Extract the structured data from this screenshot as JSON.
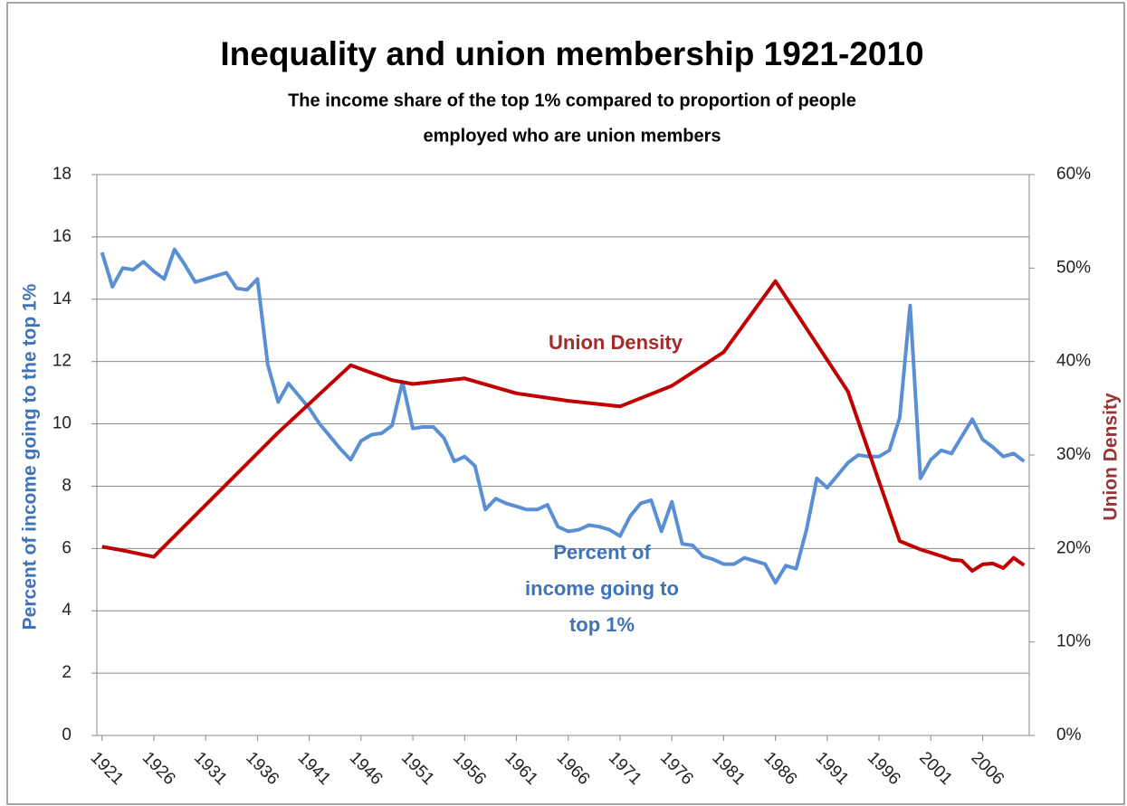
{
  "chart_data": {
    "type": "line",
    "title": "Inequality and union membership 1921-2010",
    "subtitle": [
      "The income share of the top 1% compared to proportion of people",
      "employed who are union members"
    ],
    "y_label": "Percent of income going to the top 1%",
    "y2_label": "Union Density",
    "annotations": [
      {
        "lines": [
          "Union Density"
        ],
        "color": "#a52a2a"
      },
      {
        "lines": [
          "Percent of",
          "income going to",
          "top 1%"
        ],
        "color": "#3f73b5"
      }
    ],
    "xlim": [
      1920.5,
      2010.5
    ],
    "xticks": [
      1921,
      1926,
      1931,
      1936,
      1941,
      1946,
      1951,
      1956,
      1961,
      1966,
      1971,
      1976,
      1981,
      1986,
      1991,
      1996,
      2001,
      2006
    ],
    "ylim": [
      0,
      18
    ],
    "yticks": [
      0,
      2,
      4,
      6,
      8,
      10,
      12,
      14,
      16,
      18
    ],
    "y2lim": [
      0,
      60
    ],
    "y2ticks": [
      {
        "value": 0,
        "label": "0%"
      },
      {
        "value": 10,
        "label": "10%"
      },
      {
        "value": 20,
        "label": "20%"
      },
      {
        "value": 30,
        "label": "30%"
      },
      {
        "value": 40,
        "label": "40%"
      },
      {
        "value": 50,
        "label": "50%"
      },
      {
        "value": 60,
        "label": "60%"
      }
    ],
    "grid": true,
    "series": [
      {
        "name": "Percent of income going to top 1%",
        "color": "#5b8fd4",
        "x": [
          1921,
          1922,
          1923,
          1924,
          1925,
          1926,
          1927,
          1928,
          1929,
          1930,
          1931,
          1932,
          1933,
          1934,
          1935,
          1936,
          1937,
          1938,
          1939,
          1940,
          1941,
          1942,
          1943,
          1944,
          1945,
          1946,
          1947,
          1948,
          1949,
          1950,
          1951,
          1952,
          1953,
          1954,
          1955,
          1956,
          1957,
          1958,
          1959,
          1960,
          1961,
          1962,
          1963,
          1964,
          1965,
          1966,
          1967,
          1968,
          1969,
          1970,
          1971,
          1972,
          1973,
          1974,
          1975,
          1976,
          1977,
          1978,
          1979,
          1980,
          1981,
          1982,
          1983,
          1984,
          1985,
          1986,
          1987,
          1988,
          1989,
          1990,
          1991,
          1992,
          1993,
          1994,
          1995,
          1996,
          1997,
          1998,
          1999,
          2000,
          2001,
          2002,
          2003,
          2004,
          2005,
          2006,
          2007,
          2008,
          2009,
          2010
        ],
        "values": [
          15.5,
          14.4,
          15.0,
          14.95,
          15.2,
          14.9,
          14.65,
          15.6,
          15.1,
          14.55,
          14.65,
          14.75,
          14.85,
          14.35,
          14.3,
          14.65,
          11.9,
          10.7,
          11.3,
          10.9,
          10.5,
          10.0,
          9.6,
          9.2,
          8.85,
          9.45,
          9.65,
          9.7,
          9.95,
          11.35,
          9.85,
          9.9,
          9.9,
          9.55,
          8.8,
          8.95,
          8.65,
          7.25,
          7.6,
          7.45,
          7.35,
          7.25,
          7.25,
          7.4,
          6.7,
          6.55,
          6.6,
          6.75,
          6.7,
          6.6,
          6.4,
          7.05,
          7.45,
          7.55,
          6.55,
          7.5,
          6.15,
          6.1,
          5.75,
          5.65,
          5.5,
          5.5,
          5.7,
          5.6,
          5.5,
          4.9,
          5.45,
          5.35,
          6.6,
          8.25,
          7.95,
          8.35,
          8.75,
          9.0,
          8.95,
          8.95,
          9.15,
          10.2,
          13.8,
          8.25,
          8.85,
          9.15,
          9.05,
          9.6,
          10.15,
          9.5,
          9.25,
          8.95,
          9.05,
          8.8
        ]
      },
      {
        "name": "Union Density",
        "color": "#c00000",
        "axis": "y2",
        "x": [
          1921,
          1923,
          1926,
          1938,
          1945,
          1947,
          1949,
          1951,
          1956,
          1961,
          1966,
          1971,
          1976,
          1981,
          1986,
          1993,
          1998,
          2000,
          2002,
          2003,
          2004,
          2005,
          2006,
          2007,
          2008,
          2009,
          2010
        ],
        "values": [
          20.2,
          19.8,
          19.1,
          32.4,
          39.6,
          38.8,
          38.0,
          37.6,
          38.2,
          36.6,
          35.8,
          35.2,
          37.4,
          41.0,
          48.6,
          36.8,
          20.8,
          19.9,
          19.2,
          18.8,
          18.7,
          17.6,
          18.3,
          18.4,
          17.9,
          19.0,
          18.2
        ]
      }
    ]
  }
}
